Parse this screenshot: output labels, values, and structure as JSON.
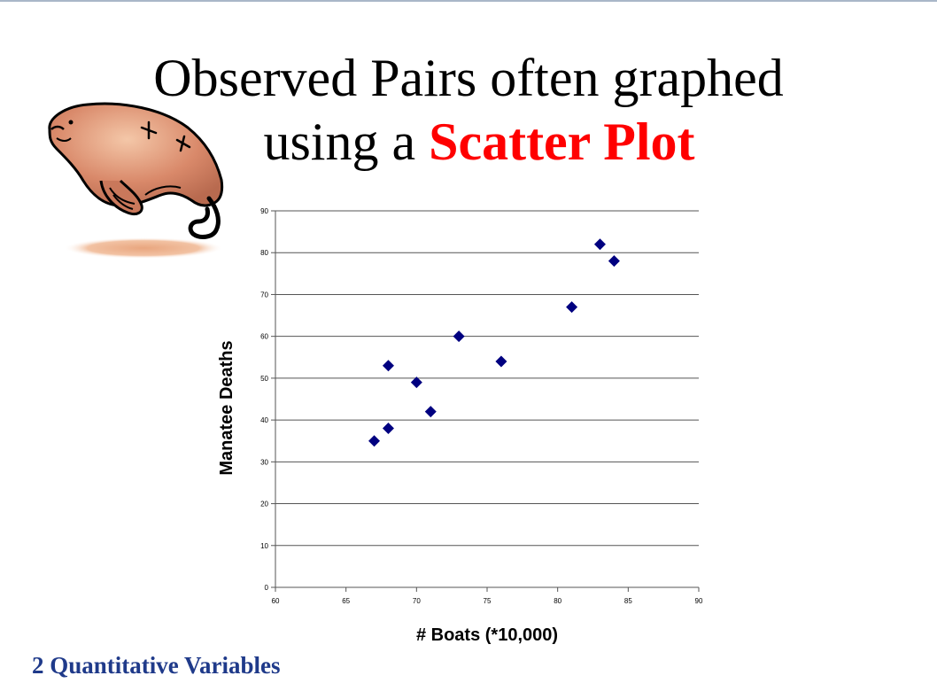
{
  "slide": {
    "title_line1": "Observed Pairs often graphed",
    "title_line2_prefix": "using a ",
    "title_line2_accent": "Scatter Plot",
    "footer": "2 Quantitative Variables",
    "accent_color": "#ff0000",
    "footer_color": "#1f3a8a"
  },
  "illustration": {
    "icon": "manatee-icon"
  },
  "chart_data": {
    "type": "scatter",
    "title": "",
    "xlabel": "# Boats (*10,000)",
    "ylabel": "Manatee Deaths",
    "xlim": [
      60,
      90
    ],
    "ylim": [
      0,
      90
    ],
    "xticks": [
      60,
      65,
      70,
      75,
      80,
      85,
      90
    ],
    "yticks": [
      0,
      10,
      20,
      30,
      40,
      50,
      60,
      70,
      80,
      90
    ],
    "grid": "horizontal",
    "marker": "diamond",
    "marker_color": "#000080",
    "points": [
      {
        "x": 67,
        "y": 35
      },
      {
        "x": 68,
        "y": 38
      },
      {
        "x": 68,
        "y": 53
      },
      {
        "x": 70,
        "y": 49
      },
      {
        "x": 71,
        "y": 42
      },
      {
        "x": 73,
        "y": 60
      },
      {
        "x": 76,
        "y": 54
      },
      {
        "x": 81,
        "y": 67
      },
      {
        "x": 83,
        "y": 82
      },
      {
        "x": 84,
        "y": 78
      }
    ]
  }
}
